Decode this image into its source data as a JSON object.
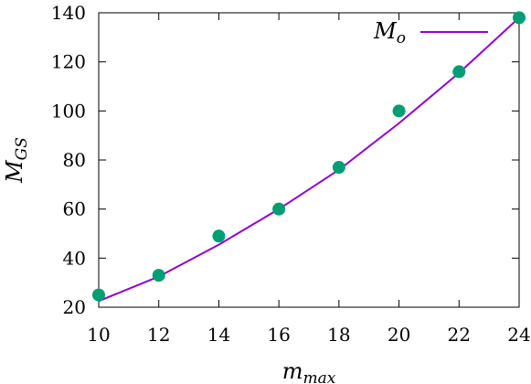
{
  "chart_data": {
    "type": "scatter",
    "xlabel": "m",
    "xlabel_sub": "max",
    "ylabel": "M",
    "ylabel_sub": "GS",
    "xlim": [
      10,
      24
    ],
    "ylim": [
      20,
      140
    ],
    "xticks": [
      "10",
      "12",
      "14",
      "16",
      "18",
      "20",
      "22",
      "24"
    ],
    "yticks": [
      "20",
      "40",
      "60",
      "80",
      "100",
      "120",
      "140"
    ],
    "grid": false,
    "legend_position": "top-right",
    "series": [
      {
        "kind": "line",
        "name": "M",
        "name_sub": "o",
        "color": "#9400d3",
        "x": [
          10,
          12,
          14,
          16,
          18,
          20,
          22,
          24
        ],
        "y": [
          22.5,
          32.5,
          45.5,
          60,
          76,
          95,
          115.5,
          138
        ]
      },
      {
        "kind": "points",
        "color": "#009e73",
        "x": [
          10,
          12,
          14,
          16,
          18,
          20,
          22,
          24
        ],
        "y": [
          25,
          33,
          49,
          60,
          77,
          100,
          116,
          138
        ]
      }
    ]
  }
}
